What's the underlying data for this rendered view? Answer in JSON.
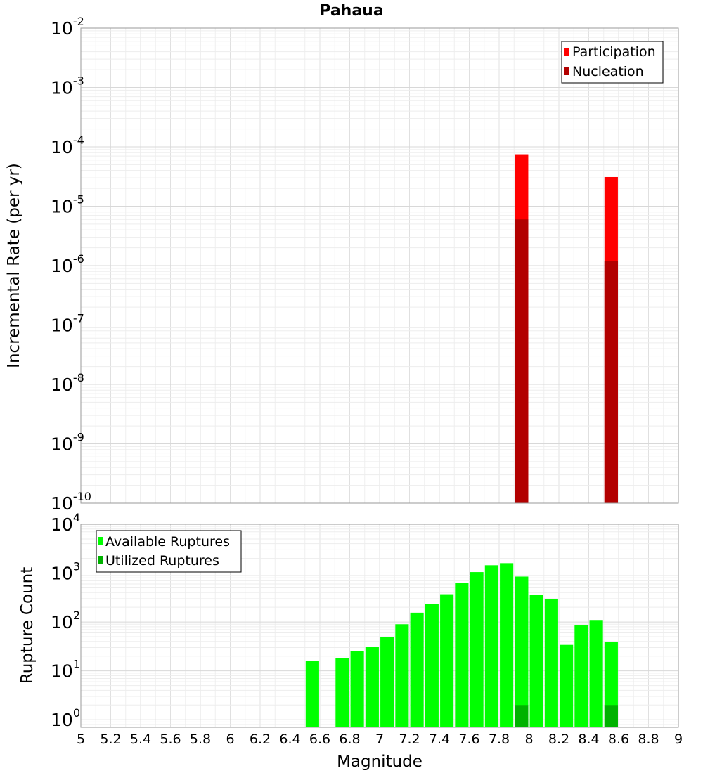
{
  "chart_data": [
    {
      "type": "bar",
      "title": "Pahaua",
      "ylabel": "Incremental Rate (per yr)",
      "yscale": "log",
      "ylim": [
        1e-10,
        0.01
      ],
      "xlim": [
        5,
        9
      ],
      "grid": true,
      "legend_position": "top-right",
      "ytick_labels": [
        {
          "base": "10",
          "exp": "-10"
        },
        {
          "base": "10",
          "exp": "-9"
        },
        {
          "base": "10",
          "exp": "-8"
        },
        {
          "base": "10",
          "exp": "-7"
        },
        {
          "base": "10",
          "exp": "-6"
        },
        {
          "base": "10",
          "exp": "-5"
        },
        {
          "base": "10",
          "exp": "-4"
        },
        {
          "base": "10",
          "exp": "-3"
        },
        {
          "base": "10",
          "exp": "-2"
        }
      ],
      "series": [
        {
          "name": "Participation",
          "color": "#ff0000",
          "points": [
            {
              "x": 7.95,
              "y": 7.5e-05
            },
            {
              "x": 8.55,
              "y": 3.1e-05
            }
          ]
        },
        {
          "name": "Nucleation",
          "color": "#b20000",
          "points": [
            {
              "x": 7.95,
              "y": 6e-06
            },
            {
              "x": 8.55,
              "y": 1.2e-06
            }
          ]
        }
      ]
    },
    {
      "type": "bar",
      "title": "",
      "xlabel": "Magnitude",
      "ylabel": "Rupture Count",
      "yscale": "log",
      "ylim": [
        0.7,
        10000
      ],
      "xlim": [
        5,
        9
      ],
      "grid": true,
      "legend_position": "top-left",
      "xtick_labels": [
        "5",
        "5.2",
        "5.4",
        "5.6",
        "5.8",
        "6",
        "6.2",
        "6.4",
        "6.6",
        "6.8",
        "7",
        "7.2",
        "7.4",
        "7.6",
        "7.8",
        "8",
        "8.2",
        "8.4",
        "8.6",
        "8.8",
        "9"
      ],
      "ytick_labels": [
        {
          "base": "10",
          "exp": "0"
        },
        {
          "base": "10",
          "exp": "1"
        },
        {
          "base": "10",
          "exp": "2"
        },
        {
          "base": "10",
          "exp": "3"
        },
        {
          "base": "10",
          "exp": "4"
        }
      ],
      "series": [
        {
          "name": "Available Ruptures",
          "color": "#00ff00",
          "points": [
            {
              "x": 6.55,
              "y": 16
            },
            {
              "x": 6.75,
              "y": 18
            },
            {
              "x": 6.85,
              "y": 25
            },
            {
              "x": 6.95,
              "y": 31
            },
            {
              "x": 7.05,
              "y": 50
            },
            {
              "x": 7.15,
              "y": 90
            },
            {
              "x": 7.25,
              "y": 155
            },
            {
              "x": 7.35,
              "y": 230
            },
            {
              "x": 7.45,
              "y": 370
            },
            {
              "x": 7.55,
              "y": 620
            },
            {
              "x": 7.65,
              "y": 1050
            },
            {
              "x": 7.75,
              "y": 1450
            },
            {
              "x": 7.85,
              "y": 1600
            },
            {
              "x": 7.95,
              "y": 850
            },
            {
              "x": 8.05,
              "y": 360
            },
            {
              "x": 8.15,
              "y": 290
            },
            {
              "x": 8.25,
              "y": 34
            },
            {
              "x": 8.35,
              "y": 85
            },
            {
              "x": 8.45,
              "y": 110
            },
            {
              "x": 8.55,
              "y": 39
            }
          ]
        },
        {
          "name": "Utilized Ruptures",
          "color": "#00b200",
          "points": [
            {
              "x": 7.95,
              "y": 2
            },
            {
              "x": 8.55,
              "y": 2
            }
          ]
        }
      ]
    }
  ]
}
